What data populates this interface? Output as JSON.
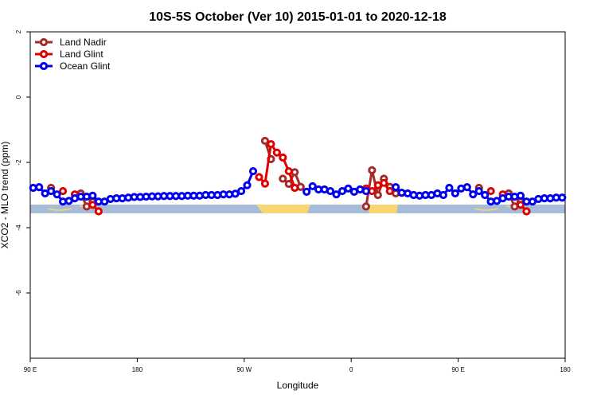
{
  "chart_data": {
    "type": "line",
    "title": "10S-5S October (Ver 10)   2015-01-01 to 2020-12-18",
    "xlabel": "Longitude",
    "ylabel": "XCO2 - MLO trend (ppm)",
    "xlim": [
      90,
      540
    ],
    "ylim": [
      -8,
      2
    ],
    "xticks": [
      {
        "value": 90,
        "label": "90 E"
      },
      180,
      {
        "value": 270,
        "label": "90 W"
      },
      {
        "value": 360,
        "label": "0"
      },
      {
        "value": 450,
        "label": "90 E"
      },
      {
        "value": 540,
        "label": "180"
      }
    ],
    "yticks": [
      -6,
      -4,
      -2,
      0,
      2
    ],
    "legend": "top-left",
    "x": [
      92.5,
      97.5,
      102.5,
      107.5,
      112.5,
      117.5,
      122.5,
      127.5,
      132.5,
      137.5,
      142.5,
      147.5,
      152.5,
      157.5,
      162.5,
      167.5,
      172.5,
      177.5,
      182.5,
      187.5,
      192.5,
      197.5,
      202.5,
      207.5,
      212.5,
      217.5,
      222.5,
      227.5,
      232.5,
      237.5,
      242.5,
      247.5,
      252.5,
      257.5,
      262.5,
      267.5,
      272.5,
      277.5,
      282.5,
      287.5,
      292.5,
      297.5,
      302.5,
      307.5,
      312.5,
      317.5,
      322.5,
      327.5,
      332.5,
      337.5,
      342.5,
      347.5,
      352.5,
      357.5,
      362.5,
      367.5,
      372.5,
      377.5,
      382.5,
      387.5,
      392.5,
      397.5,
      402.5,
      407.5,
      412.5,
      417.5,
      422.5,
      427.5,
      432.5,
      437.5,
      442.5,
      447.5,
      452.5,
      457.5,
      462.5,
      467.5,
      472.5,
      477.5,
      482.5,
      487.5,
      492.5,
      497.5,
      502.5,
      507.5,
      512.5,
      517.5,
      522.5,
      527.5,
      532.5,
      537.5
    ],
    "series": [
      {
        "name": "Land Nadir",
        "color": "#a52a2a",
        "values": [
          null,
          null,
          null,
          -2.78,
          null,
          null,
          null,
          null,
          -2.95,
          -3.35,
          -3.2,
          null,
          null,
          null,
          null,
          null,
          null,
          null,
          null,
          null,
          null,
          null,
          null,
          null,
          null,
          null,
          null,
          null,
          null,
          null,
          null,
          null,
          null,
          null,
          null,
          null,
          null,
          null,
          null,
          -1.34,
          -1.9,
          null,
          -2.5,
          -2.66,
          -2.3,
          -2.75,
          null,
          null,
          null,
          null,
          null,
          null,
          null,
          null,
          null,
          null,
          -3.35,
          -2.24,
          -3.0,
          -2.5,
          -2.75,
          -2.95,
          null,
          null,
          null,
          null,
          null,
          null,
          null,
          null,
          null,
          null,
          null,
          null,
          null,
          -2.78,
          null,
          null,
          null,
          null,
          -2.95,
          -3.35,
          -3.2,
          null,
          null,
          null,
          null,
          null,
          null,
          null
        ]
      },
      {
        "name": "Land Glint",
        "color": "#e00000",
        "values": [
          null,
          null,
          null,
          null,
          null,
          -2.88,
          null,
          -2.98,
          null,
          null,
          -3.3,
          -3.5,
          null,
          null,
          null,
          null,
          null,
          null,
          null,
          null,
          null,
          null,
          null,
          null,
          null,
          null,
          null,
          null,
          null,
          null,
          null,
          null,
          null,
          null,
          null,
          null,
          null,
          null,
          -2.45,
          -2.65,
          -1.44,
          -1.7,
          -1.85,
          -2.27,
          -2.78,
          null,
          null,
          null,
          null,
          null,
          null,
          null,
          null,
          null,
          null,
          null,
          -2.8,
          -2.88,
          -2.7,
          -2.63,
          -2.88,
          null,
          null,
          null,
          null,
          null,
          null,
          null,
          null,
          null,
          null,
          null,
          null,
          null,
          null,
          null,
          null,
          -2.88,
          null,
          -2.98,
          null,
          null,
          -3.3,
          -3.5,
          null,
          null,
          null,
          null,
          null,
          null
        ]
      },
      {
        "name": "Ocean Glint",
        "color": "#0000ee",
        "values": [
          -2.78,
          -2.76,
          -2.95,
          -2.88,
          -2.98,
          -3.2,
          -3.18,
          -3.1,
          -3.05,
          -3.05,
          -3.02,
          -3.2,
          -3.2,
          -3.12,
          -3.1,
          -3.1,
          -3.08,
          -3.06,
          -3.06,
          -3.05,
          -3.04,
          -3.04,
          -3.03,
          -3.03,
          -3.03,
          -3.03,
          -3.02,
          -3.02,
          -3.02,
          -3.0,
          -3.0,
          -3.0,
          -2.98,
          -2.98,
          -2.96,
          -2.88,
          -2.7,
          -2.27,
          null,
          null,
          null,
          null,
          null,
          null,
          null,
          null,
          -2.9,
          -2.73,
          -2.83,
          -2.83,
          -2.88,
          -2.98,
          -2.88,
          -2.8,
          -2.9,
          -2.83,
          -2.88,
          null,
          null,
          null,
          null,
          -2.76,
          -2.93,
          -2.95,
          -3.0,
          -3.02,
          -3.0,
          -3.0,
          -2.95,
          -3.0,
          -2.78,
          -2.95,
          -2.8,
          -2.76,
          -2.98,
          -2.88,
          -3.0,
          -3.2,
          -3.18,
          -3.1,
          -3.05,
          -3.05,
          -3.02,
          -3.2,
          -3.2,
          -3.12,
          -3.1,
          -3.1,
          -3.08,
          -3.08
        ]
      }
    ]
  }
}
